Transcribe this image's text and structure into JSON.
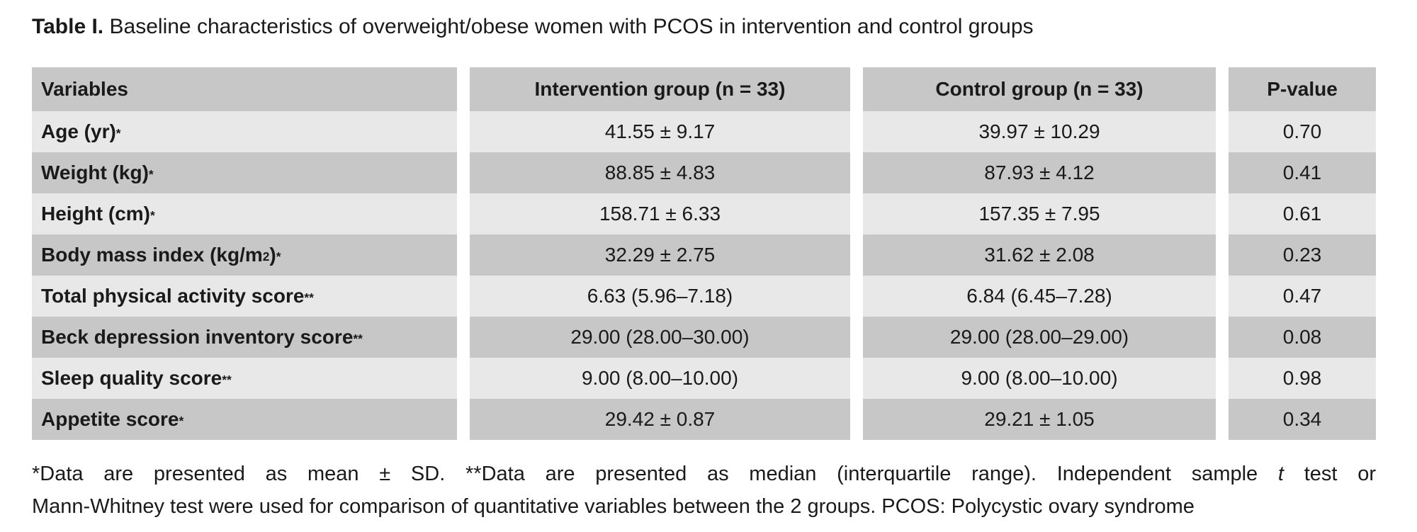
{
  "title": {
    "label": "Table I.",
    "text": "Baseline characteristics of overweight/obese women with PCOS in intervention and control groups"
  },
  "table": {
    "columns": [
      "Variables",
      "Intervention group (n = 33)",
      "Control group (n = 33)",
      "P-value"
    ],
    "rows": [
      {
        "label_parts": [
          {
            "text": "Age (yr)"
          },
          {
            "text": "*",
            "sup": true
          }
        ],
        "intervention": "41.55 ± 9.17",
        "control": "39.97 ± 10.29",
        "p": "0.70"
      },
      {
        "label_parts": [
          {
            "text": "Weight (kg)"
          },
          {
            "text": "*",
            "sup": true
          }
        ],
        "intervention": "88.85 ± 4.83",
        "control": "87.93 ± 4.12",
        "p": "0.41"
      },
      {
        "label_parts": [
          {
            "text": "Height (cm)"
          },
          {
            "text": "*",
            "sup": true
          }
        ],
        "intervention": "158.71 ± 6.33",
        "control": "157.35 ± 7.95",
        "p": "0.61"
      },
      {
        "label_parts": [
          {
            "text": "Body mass index (kg/m"
          },
          {
            "text": "2",
            "sup": true
          },
          {
            "text": ")"
          },
          {
            "text": "*",
            "sup": true
          }
        ],
        "intervention": "32.29 ± 2.75",
        "control": "31.62 ± 2.08",
        "p": "0.23"
      },
      {
        "label_parts": [
          {
            "text": "Total physical activity score"
          },
          {
            "text": "**",
            "sup": true
          }
        ],
        "intervention": "6.63 (5.96–7.18)",
        "control": "6.84 (6.45–7.28)",
        "p": "0.47"
      },
      {
        "label_parts": [
          {
            "text": "Beck depression inventory score"
          },
          {
            "text": "**",
            "sup": true
          }
        ],
        "intervention": "29.00 (28.00–30.00)",
        "control": "29.00 (28.00–29.00)",
        "p": "0.08"
      },
      {
        "label_parts": [
          {
            "text": "Sleep quality score"
          },
          {
            "text": "**",
            "sup": true
          }
        ],
        "intervention": "9.00 (8.00–10.00)",
        "control": "9.00 (8.00–10.00)",
        "p": "0.98"
      },
      {
        "label_parts": [
          {
            "text": "Appetite score"
          },
          {
            "text": "*",
            "sup": true
          }
        ],
        "intervention": "29.42 ± 0.87",
        "control": "29.21 ± 1.05",
        "p": "0.34"
      }
    ]
  },
  "footnote": {
    "lines": [
      [
        {
          "text": "*Data are presented as mean ± SD. **Data are presented as median (interquartile range). Independent sample "
        },
        {
          "text": "t",
          "italic": true
        },
        {
          "text": " test or"
        }
      ],
      [
        {
          "text": "Mann-Whitney test were used for comparison of quantitative variables between the 2 groups. PCOS: Polycystic ovary syndrome"
        }
      ]
    ]
  },
  "colors": {
    "row_dark": "#c7c7c7",
    "row_light": "#e8e8e8",
    "text": "#1a1a1a",
    "background": "#ffffff"
  },
  "chart_data": {
    "type": "table",
    "title": "Table I. Baseline characteristics of overweight/obese women with PCOS in intervention and control groups",
    "columns": [
      "Variables",
      "Intervention group (n = 33)",
      "Control group (n = 33)",
      "P-value"
    ],
    "rows": [
      [
        "Age (yr)*",
        "41.55 ± 9.17",
        "39.97 ± 10.29",
        "0.70"
      ],
      [
        "Weight (kg)*",
        "88.85 ± 4.83",
        "87.93 ± 4.12",
        "0.41"
      ],
      [
        "Height (cm)*",
        "158.71 ± 6.33",
        "157.35 ± 7.95",
        "0.61"
      ],
      [
        "Body mass index (kg/m2)*",
        "32.29 ± 2.75",
        "31.62 ± 2.08",
        "0.23"
      ],
      [
        "Total physical activity score**",
        "6.63 (5.96–7.18)",
        "6.84 (6.45–7.28)",
        "0.47"
      ],
      [
        "Beck depression inventory score**",
        "29.00 (28.00–30.00)",
        "29.00 (28.00–29.00)",
        "0.08"
      ],
      [
        "Sleep quality score**",
        "9.00 (8.00–10.00)",
        "9.00 (8.00–10.00)",
        "0.98"
      ],
      [
        "Appetite score*",
        "29.42 ± 0.87",
        "29.21 ± 1.05",
        "0.34"
      ]
    ]
  }
}
